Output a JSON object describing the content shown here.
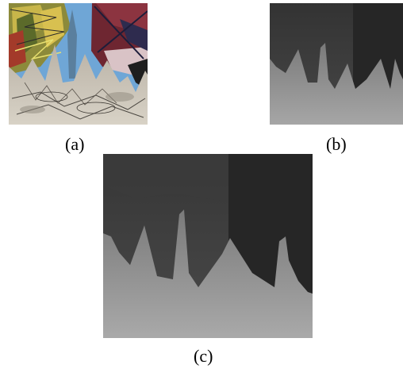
{
  "figure": {
    "panels": [
      {
        "id": "a",
        "caption": "(a)",
        "content": "painted-image"
      },
      {
        "id": "b",
        "caption": "(b)",
        "content": "depth-map"
      },
      {
        "id": "c",
        "caption": "(c)",
        "content": "depth-map"
      }
    ]
  },
  "colors": {
    "depth_far_left": "#3a3a3a",
    "depth_far_right": "#262626",
    "depth_near_top": "#7a7a7a",
    "depth_near_bottom": "#a9a9a9",
    "sky_blue": "#6fa6d6",
    "red_panel": "#7a2a33"
  }
}
